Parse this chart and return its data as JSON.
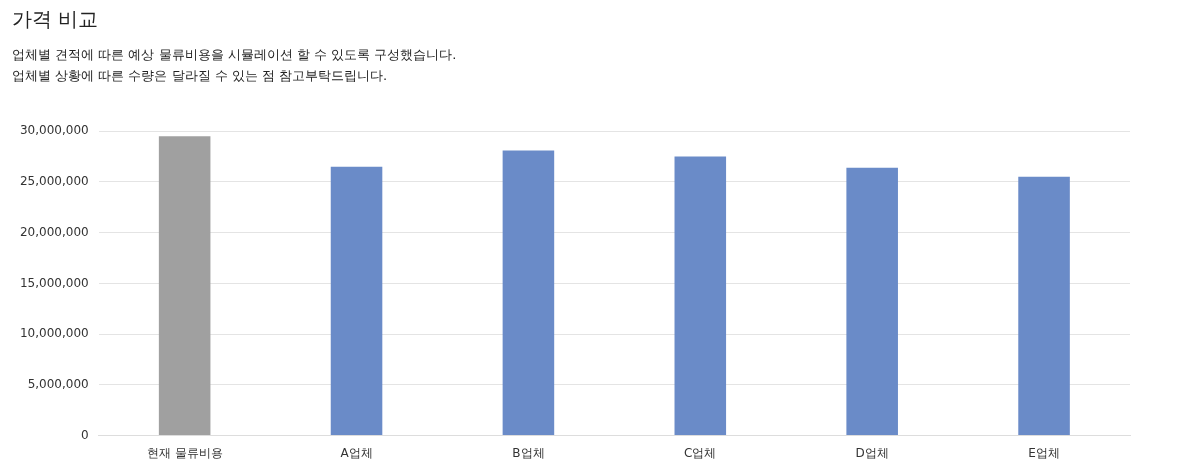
{
  "chart_data": {
    "type": "bar",
    "title": "가격 비교",
    "subtitle": "업체별 견적에 따른 예상 물류비용을 시뮬레이션 할 수 있도록 구성했습니다.\n업체별 상황에 따른 수량은 달라질 수 있는 점 참고부탁드립니다.",
    "categories": [
      "현재 물류비용",
      "A업체",
      "B업체",
      "C업체",
      "D업체",
      "E업체"
    ],
    "values": [
      29500000,
      26500000,
      28100000,
      27500000,
      26400000,
      25500000
    ],
    "colors": [
      "#a0a0a0",
      "#6a8bc8",
      "#6a8bc8",
      "#6a8bc8",
      "#6a8bc8",
      "#6a8bc8"
    ],
    "ylim": [
      0,
      30000000
    ],
    "yticks": [
      0,
      {
        "value": 5000000,
        "label": "5,000,000"
      },
      {
        "value": 10000000,
        "label": "10,000,000"
      },
      {
        "value": 15000000,
        "label": "15,000,000"
      },
      {
        "value": 20000000,
        "label": "20,000,000"
      },
      {
        "value": 25000000,
        "label": "25,000,000"
      },
      {
        "value": 30000000,
        "label": "30,000,000"
      }
    ],
    "grid": "y",
    "legend": false
  }
}
